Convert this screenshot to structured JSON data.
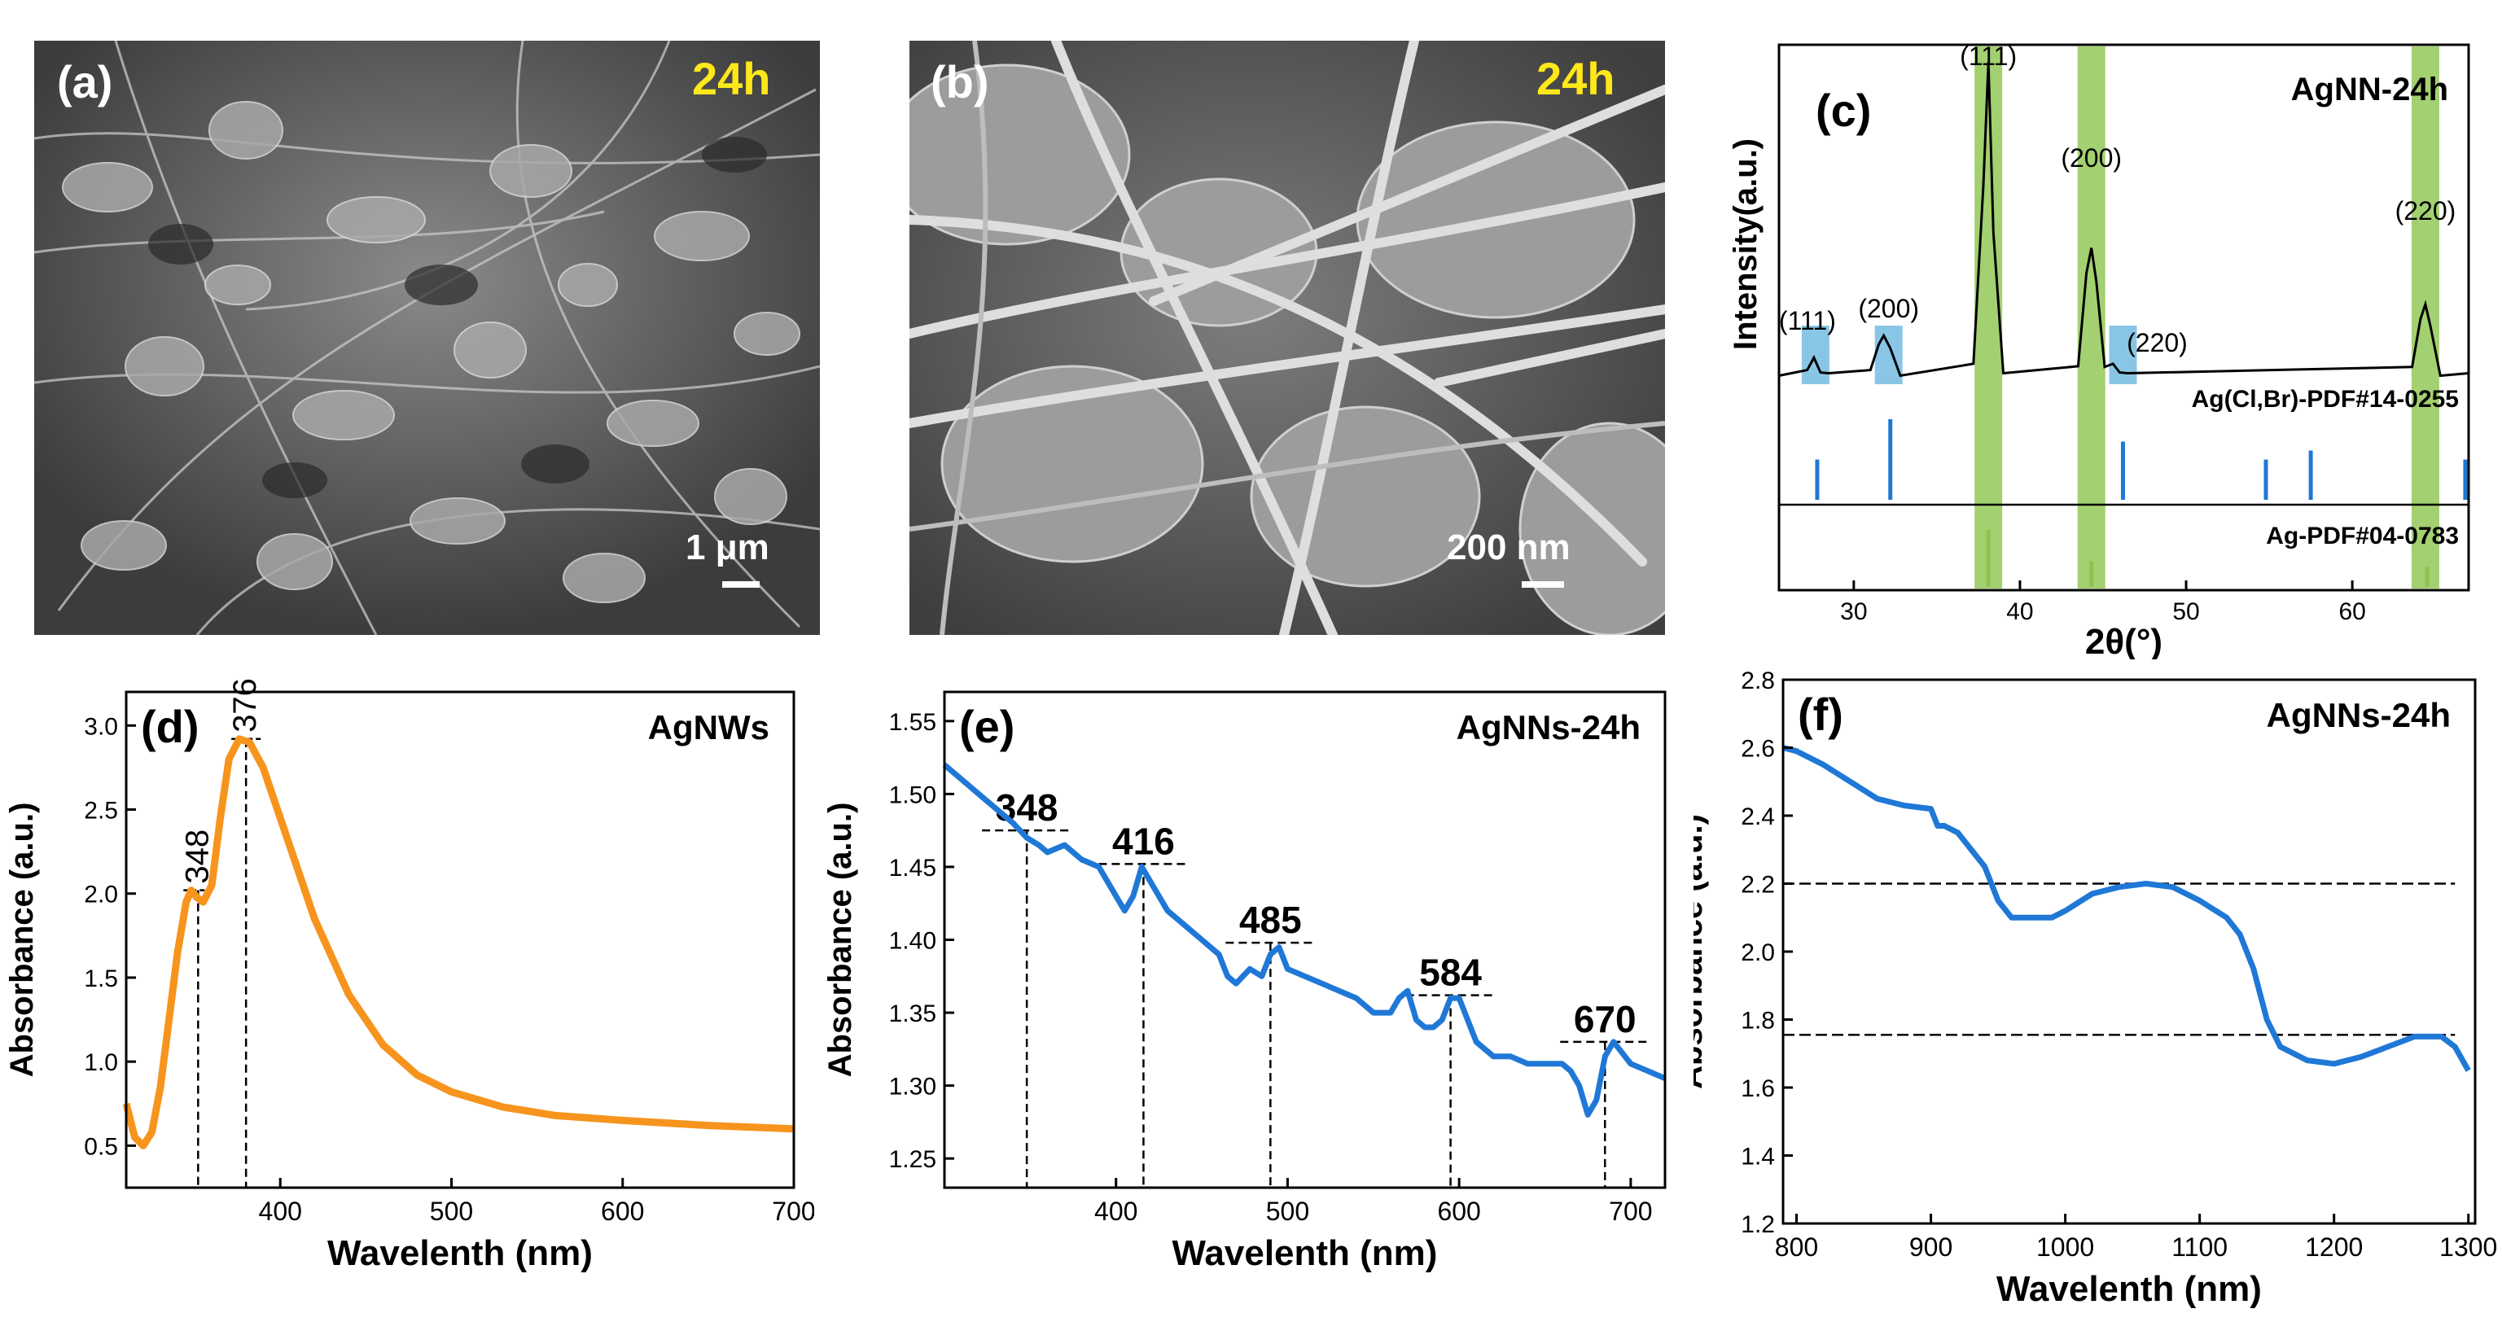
{
  "panels": {
    "a": {
      "label": "(a)",
      "time": "24h",
      "scalebar": "1 μm"
    },
    "b": {
      "label": "(b)",
      "time": "24h",
      "scalebar": "200 nm"
    }
  },
  "colors": {
    "orange_curve": "#f7941d",
    "blue_curve": "#1f78d6",
    "green_highlight": "#8cc44c",
    "blue_highlight": "#6bb8e0",
    "sem_background": "#575757",
    "time_label": "#ffe81a"
  },
  "chart_data": [
    {
      "id": "c",
      "type": "line",
      "panel_label": "(c)",
      "sample": "AgNN-24h",
      "xlabel": "2θ(°)",
      "ylabel": "Intensity(a.u.)",
      "xlim": [
        25.5,
        67
      ],
      "xticks": [
        30,
        40,
        50,
        60
      ],
      "series": [
        {
          "x": [
            25.5,
            27.2,
            27.6,
            28.0,
            28.5,
            31.0,
            31.5,
            31.8,
            32.2,
            32.8,
            37.2,
            37.8,
            38.1,
            38.4,
            39.0,
            43.5,
            44.0,
            44.3,
            44.6,
            45.1,
            45.6,
            46.0,
            46.5,
            63.6,
            64.1,
            64.4,
            64.7,
            65.3,
            67.0
          ],
          "y": [
            0,
            0.01,
            0.05,
            0.01,
            0,
            0.01,
            0.1,
            0.12,
            0.08,
            0,
            0.03,
            0.6,
            1.0,
            0.45,
            0,
            0.03,
            0.32,
            0.4,
            0.3,
            0.02,
            0.03,
            0.01,
            0,
            0.02,
            0.18,
            0.22,
            0.15,
            0,
            0
          ]
        }
      ],
      "reference_patterns": [
        {
          "name": "Ag(Cl,Br)-PDF#14-0255",
          "positions": [
            27.8,
            32.2,
            46.2,
            54.8,
            57.5,
            66.8
          ],
          "heights": [
            0.45,
            0.9,
            0.65,
            0.45,
            0.55,
            0.45
          ]
        },
        {
          "name": "Ag-PDF#04-0783",
          "positions": [
            38.1,
            44.3,
            64.5
          ],
          "heights": [
            1.0,
            0.45,
            0.35
          ]
        }
      ],
      "peak_labels": [
        {
          "text": "(111)",
          "x": 27.7,
          "phase": "AgX"
        },
        {
          "text": "(200)",
          "x": 32.1,
          "phase": "AgX"
        },
        {
          "text": "(111)",
          "x": 38.1,
          "phase": "Ag"
        },
        {
          "text": "(200)",
          "x": 44.3,
          "phase": "Ag"
        },
        {
          "text": "(220)",
          "x": 46.2,
          "phase": "AgX"
        },
        {
          "text": "(220)",
          "x": 64.4,
          "phase": "Ag"
        }
      ]
    },
    {
      "id": "d",
      "type": "line",
      "panel_label": "(d)",
      "sample": "AgNWs",
      "xlabel": "Wavelenth (nm)",
      "ylabel": "Absorbance (a.u.)",
      "xlim": [
        310,
        700
      ],
      "ylim": [
        0.25,
        3.2
      ],
      "xticks": [
        400,
        500,
        600,
        700
      ],
      "yticks": [
        0.5,
        1.0,
        1.5,
        2.0,
        2.5,
        3.0
      ],
      "ytick_labels": [
        "0.5",
        "1.0",
        "1.5",
        "2.0",
        "2.5",
        "3.0"
      ],
      "series": [
        {
          "x": [
            310,
            315,
            320,
            325,
            330,
            335,
            340,
            345,
            348,
            351,
            355,
            360,
            365,
            370,
            376,
            382,
            390,
            400,
            420,
            440,
            460,
            480,
            500,
            530,
            560,
            600,
            650,
            700
          ],
          "y": [
            0.75,
            0.55,
            0.5,
            0.58,
            0.85,
            1.25,
            1.65,
            1.95,
            2.02,
            1.98,
            1.95,
            2.05,
            2.45,
            2.8,
            2.92,
            2.9,
            2.75,
            2.45,
            1.85,
            1.4,
            1.1,
            0.92,
            0.82,
            0.73,
            0.68,
            0.65,
            0.62,
            0.6
          ]
        }
      ],
      "annotations": [
        {
          "text": "348",
          "x": 352,
          "y": 2.02
        },
        {
          "text": "376",
          "x": 380,
          "y": 2.92
        }
      ]
    },
    {
      "id": "e",
      "type": "line",
      "panel_label": "(e)",
      "sample": "AgNNs-24h",
      "xlabel": "Wavelenth (nm)",
      "ylabel": "Absorbance (a.u.)",
      "xlim": [
        300,
        720
      ],
      "ylim": [
        1.23,
        1.57
      ],
      "xticks": [
        400,
        500,
        600,
        700
      ],
      "yticks": [
        1.25,
        1.3,
        1.35,
        1.4,
        1.45,
        1.5,
        1.55
      ],
      "ytick_labels": [
        "1.25",
        "1.30",
        "1.35",
        "1.40",
        "1.45",
        "1.50",
        "1.55"
      ],
      "series": [
        {
          "x": [
            300,
            310,
            320,
            330,
            340,
            348,
            355,
            360,
            370,
            380,
            390,
            400,
            405,
            410,
            415,
            420,
            430,
            440,
            450,
            460,
            465,
            470,
            478,
            485,
            490,
            495,
            500,
            510,
            520,
            530,
            540,
            550,
            560,
            565,
            570,
            575,
            580,
            585,
            590,
            595,
            600,
            610,
            620,
            630,
            640,
            650,
            660,
            665,
            670,
            675,
            680,
            685,
            690,
            700,
            710,
            720
          ],
          "y": [
            1.52,
            1.51,
            1.5,
            1.49,
            1.48,
            1.47,
            1.465,
            1.46,
            1.465,
            1.455,
            1.45,
            1.43,
            1.42,
            1.43,
            1.45,
            1.44,
            1.42,
            1.41,
            1.4,
            1.39,
            1.375,
            1.37,
            1.38,
            1.375,
            1.39,
            1.395,
            1.38,
            1.375,
            1.37,
            1.365,
            1.36,
            1.35,
            1.35,
            1.36,
            1.365,
            1.345,
            1.34,
            1.34,
            1.345,
            1.36,
            1.36,
            1.33,
            1.32,
            1.32,
            1.315,
            1.315,
            1.315,
            1.31,
            1.3,
            1.28,
            1.29,
            1.32,
            1.33,
            1.315,
            1.31,
            1.305
          ]
        }
      ],
      "annotations": [
        {
          "text": "348",
          "x": 348,
          "y": 1.475
        },
        {
          "text": "416",
          "x": 416,
          "y": 1.452
        },
        {
          "text": "485",
          "x": 490,
          "y": 1.398
        },
        {
          "text": "584",
          "x": 595,
          "y": 1.362
        },
        {
          "text": "670",
          "x": 685,
          "y": 1.33
        }
      ]
    },
    {
      "id": "f",
      "type": "line",
      "panel_label": "(f)",
      "sample": "AgNNs-24h",
      "xlabel": "Wavelenth (nm)",
      "ylabel": "Absorbance (a.u.)",
      "xlim": [
        790,
        1305
      ],
      "ylim": [
        1.2,
        2.8
      ],
      "xticks": [
        800,
        900,
        1000,
        1100,
        1200,
        1300
      ],
      "yticks": [
        1.2,
        1.4,
        1.6,
        1.8,
        2.0,
        2.2,
        2.4,
        2.6,
        2.8
      ],
      "ytick_labels": [
        "1.2",
        "1.4",
        "1.6",
        "1.8",
        "2.0",
        "2.2",
        "2.4",
        "2.6",
        "2.8"
      ],
      "series": [
        {
          "x": [
            790,
            800,
            820,
            840,
            860,
            880,
            900,
            905,
            910,
            920,
            940,
            950,
            960,
            975,
            990,
            1000,
            1020,
            1040,
            1060,
            1080,
            1100,
            1120,
            1130,
            1140,
            1150,
            1160,
            1170,
            1180,
            1200,
            1220,
            1240,
            1260,
            1280,
            1290,
            1300
          ],
          "y": [
            2.6,
            2.59,
            2.55,
            2.5,
            2.45,
            2.43,
            2.42,
            2.37,
            2.37,
            2.35,
            2.25,
            2.15,
            2.1,
            2.1,
            2.1,
            2.12,
            2.17,
            2.19,
            2.2,
            2.19,
            2.15,
            2.1,
            2.05,
            1.95,
            1.8,
            1.72,
            1.7,
            1.68,
            1.67,
            1.69,
            1.72,
            1.75,
            1.75,
            1.72,
            1.65
          ]
        }
      ],
      "reference_lines": [
        2.2,
        1.755
      ]
    }
  ]
}
